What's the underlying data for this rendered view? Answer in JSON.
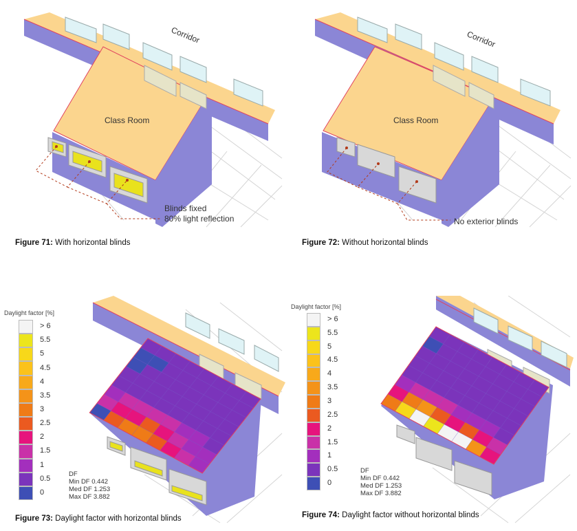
{
  "fig71": {
    "corridor": "Corridor",
    "room": "Class Room",
    "note_line1": "Blinds fixed",
    "note_line2": "80% light reflection",
    "caption_num": "Figure 71:",
    "caption_text": " With horizontal blinds"
  },
  "fig72": {
    "corridor": "Corridor",
    "room": "Class Room",
    "note": "No exterior blinds",
    "caption_num": "Figure 72:",
    "caption_text": " Without horizontal blinds"
  },
  "fig73": {
    "legend_title": "Daylight factor [%]",
    "df_label": "DF",
    "min_df": "Min DF  0.442",
    "med_df": "Med DF  1.253",
    "max_df": "Max DF  3.882",
    "caption_num": "Figure 73:",
    "caption_text": " Daylight factor with horizontal blinds"
  },
  "fig74": {
    "legend_title": "Daylight factor [%]",
    "df_label": "DF",
    "min_df": "Min DF  0.442",
    "med_df": "Med DF  1.253",
    "max_df": "Max DF  3.882",
    "caption_num": "Figure 74:",
    "caption_text": " Daylight factor without horizontal blinds"
  },
  "legend": {
    "ticks": [
      "> 6",
      "5.5",
      "5",
      "4.5",
      "4",
      "3.5",
      "3",
      "2.5",
      "2",
      "1.5",
      "1",
      "0.5",
      "0"
    ],
    "colors": [
      "#f4f4f4",
      "#ece51c",
      "#f7d81a",
      "#fbc21b",
      "#f8a91a",
      "#f49319",
      "#ef7b17",
      "#eb5a20",
      "#e6147d",
      "#c931a8",
      "#a32fbd",
      "#7b34bb",
      "#3e4fb5"
    ]
  },
  "colors": {
    "wall": "#8b86d6",
    "floor": "#fbd58e",
    "outline": "#e0435f",
    "window": "#dff3f6",
    "grid": "#d0d0d0",
    "blind": "#e9e21d"
  }
}
